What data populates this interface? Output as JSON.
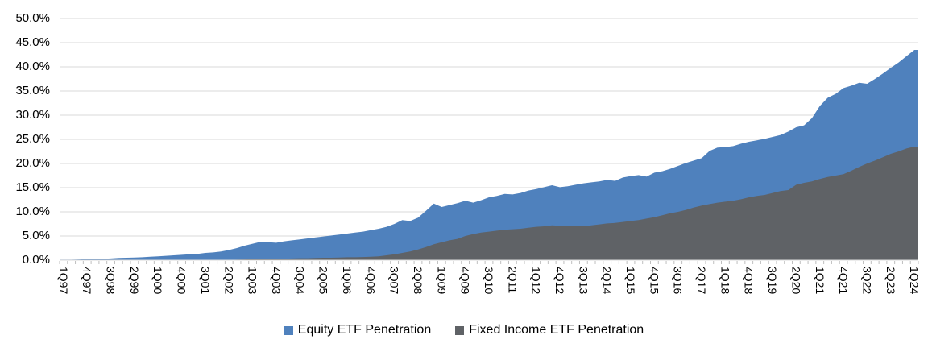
{
  "chart_data": {
    "type": "area",
    "title": "",
    "xlabel": "",
    "ylabel": "",
    "ylim": [
      0,
      50
    ],
    "y_tick_labels": [
      "0.0%",
      "5.0%",
      "10.0%",
      "15.0%",
      "20.0%",
      "25.0%",
      "30.0%",
      "35.0%",
      "40.0%",
      "45.0%",
      "50.0%"
    ],
    "grid": "horizontal gridlines on",
    "legend_position": "bottom center",
    "x_unit": "quarter",
    "x_range": "1Q97 to 1Q24",
    "n_points": 109,
    "x_label_every_n_quarters": 3,
    "x_tick_labels": [
      "1Q97",
      "4Q97",
      "3Q98",
      "2Q99",
      "1Q00",
      "4Q00",
      "3Q01",
      "2Q02",
      "1Q03",
      "4Q03",
      "3Q04",
      "2Q05",
      "1Q06",
      "4Q06",
      "3Q07",
      "2Q08",
      "1Q09",
      "4Q09",
      "3Q10",
      "2Q11",
      "1Q12",
      "4Q12",
      "3Q13",
      "2Q14",
      "1Q15",
      "4Q15",
      "3Q16",
      "2Q17",
      "1Q18",
      "4Q18",
      "3Q19",
      "2Q20",
      "1Q21",
      "4Q21",
      "3Q22",
      "2Q23",
      "1Q24"
    ],
    "series": [
      {
        "name": "Equity ETF Penetration",
        "color": "#4F81BD",
        "values": [
          0.1,
          0.1,
          0.15,
          0.2,
          0.25,
          0.3,
          0.35,
          0.45,
          0.5,
          0.55,
          0.6,
          0.7,
          0.8,
          0.9,
          1.0,
          1.1,
          1.2,
          1.3,
          1.5,
          1.6,
          1.8,
          2.1,
          2.5,
          3.0,
          3.4,
          3.8,
          3.7,
          3.6,
          3.9,
          4.1,
          4.3,
          4.5,
          4.7,
          4.9,
          5.1,
          5.3,
          5.5,
          5.7,
          5.9,
          6.2,
          6.5,
          6.9,
          7.5,
          8.3,
          8.1,
          8.8,
          10.2,
          11.7,
          11.0,
          11.4,
          11.8,
          12.3,
          11.9,
          12.4,
          13.0,
          13.3,
          13.7,
          13.6,
          13.9,
          14.4,
          14.7,
          15.1,
          15.5,
          15.1,
          15.3,
          15.6,
          15.9,
          16.1,
          16.3,
          16.6,
          16.4,
          17.1,
          17.4,
          17.6,
          17.3,
          18.1,
          18.4,
          18.9,
          19.5,
          20.1,
          20.6,
          21.1,
          22.6,
          23.3,
          23.4,
          23.6,
          24.1,
          24.5,
          24.8,
          25.1,
          25.5,
          25.9,
          26.6,
          27.5,
          27.9,
          29.4,
          31.9,
          33.6,
          34.4,
          35.6,
          36.1,
          36.7,
          36.5,
          37.5,
          38.6,
          39.8,
          40.9,
          42.2,
          43.5
        ]
      },
      {
        "name": "Fixed Income ETF Penetration",
        "color": "#5F6266",
        "values": [
          0,
          0,
          0,
          0,
          0,
          0,
          0,
          0,
          0,
          0,
          0,
          0,
          0,
          0,
          0,
          0,
          0,
          0,
          0,
          0,
          0,
          0.05,
          0.1,
          0.15,
          0.2,
          0.2,
          0.25,
          0.3,
          0.3,
          0.35,
          0.4,
          0.4,
          0.45,
          0.5,
          0.5,
          0.55,
          0.6,
          0.6,
          0.65,
          0.7,
          0.8,
          1.0,
          1.2,
          1.5,
          1.8,
          2.2,
          2.7,
          3.3,
          3.7,
          4.1,
          4.4,
          5.0,
          5.4,
          5.7,
          5.9,
          6.1,
          6.3,
          6.4,
          6.5,
          6.7,
          6.9,
          7.0,
          7.2,
          7.1,
          7.1,
          7.1,
          7.0,
          7.2,
          7.4,
          7.6,
          7.7,
          7.9,
          8.1,
          8.3,
          8.6,
          8.9,
          9.3,
          9.7,
          10.0,
          10.4,
          10.9,
          11.3,
          11.6,
          11.9,
          12.1,
          12.3,
          12.6,
          13.0,
          13.3,
          13.5,
          13.9,
          14.3,
          14.5,
          15.6,
          16.0,
          16.3,
          16.8,
          17.2,
          17.5,
          17.8,
          18.5,
          19.3,
          20.0,
          20.6,
          21.3,
          22.0,
          22.5,
          23.1,
          23.5
        ]
      }
    ],
    "render_note": "series overlap (fixed income drawn in front of equity), both baselined at 0"
  },
  "colors": {
    "gridline": "#D9D9D9",
    "tick": "#BFBFBF",
    "axis_text": "#000000",
    "background": "#FFFFFF"
  }
}
